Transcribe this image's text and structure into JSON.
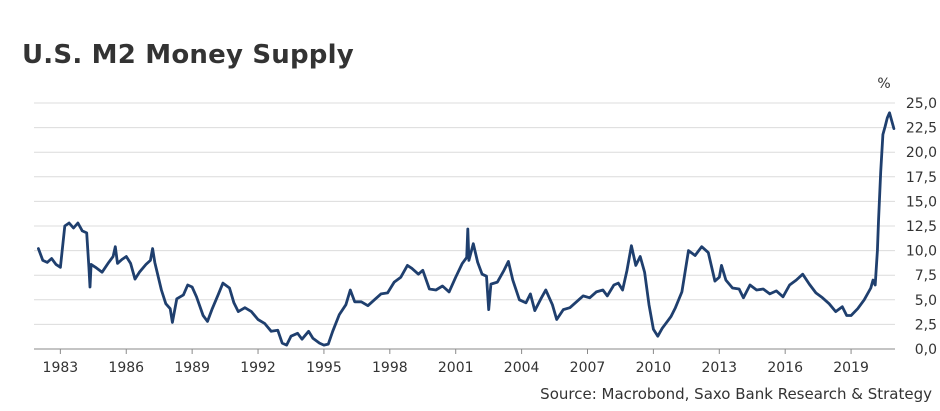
{
  "chart_data": {
    "type": "line",
    "title": "U.S. M2 Money Supply",
    "source": "Source: Macrobond, Saxo Bank Research & Strategy",
    "ylabel": "%",
    "xlabel": "",
    "xlim": [
      1981.8,
      2021.0
    ],
    "ylim": [
      0,
      25
    ],
    "grid": true,
    "legend": "none",
    "x_ticks": [
      1983,
      1986,
      1989,
      1992,
      1995,
      1998,
      2001,
      2004,
      2007,
      2010,
      2013,
      2016,
      2019
    ],
    "x_tick_labels": [
      "1983",
      "1986",
      "1989",
      "1992",
      "1995",
      "1998",
      "2001",
      "2004",
      "2007",
      "2010",
      "2013",
      "2016",
      "2019"
    ],
    "y_ticks": [
      0,
      2.5,
      5,
      7.5,
      10,
      12.5,
      15,
      17.5,
      20,
      22.5,
      25
    ],
    "y_tick_labels": [
      "0,0",
      "2,5",
      "5,0",
      "7,5",
      "10,0",
      "12,5",
      "15,0",
      "17,5",
      "20,0",
      "22,5",
      "25,0"
    ],
    "series": [
      {
        "color": "#1f3f6e",
        "points": [
          [
            1982.0,
            10.2
          ],
          [
            1982.2,
            9.0
          ],
          [
            1982.4,
            8.8
          ],
          [
            1982.6,
            9.2
          ],
          [
            1982.8,
            8.6
          ],
          [
            1983.0,
            8.3
          ],
          [
            1983.2,
            12.5
          ],
          [
            1983.4,
            12.8
          ],
          [
            1983.6,
            12.3
          ],
          [
            1983.8,
            12.8
          ],
          [
            1984.0,
            12.0
          ],
          [
            1984.2,
            11.8
          ],
          [
            1984.3,
            8.3
          ],
          [
            1984.35,
            6.3
          ],
          [
            1984.4,
            8.6
          ],
          [
            1984.6,
            8.3
          ],
          [
            1984.9,
            7.8
          ],
          [
            1985.2,
            8.8
          ],
          [
            1985.4,
            9.4
          ],
          [
            1985.5,
            10.4
          ],
          [
            1985.6,
            8.7
          ],
          [
            1985.8,
            9.1
          ],
          [
            1986.0,
            9.4
          ],
          [
            1986.2,
            8.7
          ],
          [
            1986.4,
            7.1
          ],
          [
            1986.6,
            7.8
          ],
          [
            1986.9,
            8.6
          ],
          [
            1987.1,
            9.0
          ],
          [
            1987.2,
            10.2
          ],
          [
            1987.3,
            8.8
          ],
          [
            1987.6,
            6.0
          ],
          [
            1987.8,
            4.6
          ],
          [
            1988.0,
            4.1
          ],
          [
            1988.1,
            2.7
          ],
          [
            1988.3,
            5.1
          ],
          [
            1988.6,
            5.5
          ],
          [
            1988.8,
            6.5
          ],
          [
            1989.0,
            6.3
          ],
          [
            1989.2,
            5.3
          ],
          [
            1989.5,
            3.4
          ],
          [
            1989.7,
            2.8
          ],
          [
            1989.9,
            4.0
          ],
          [
            1990.2,
            5.6
          ],
          [
            1990.4,
            6.7
          ],
          [
            1990.7,
            6.2
          ],
          [
            1990.9,
            4.7
          ],
          [
            1991.1,
            3.8
          ],
          [
            1991.4,
            4.2
          ],
          [
            1991.7,
            3.8
          ],
          [
            1992.0,
            3.0
          ],
          [
            1992.3,
            2.6
          ],
          [
            1992.6,
            1.8
          ],
          [
            1992.9,
            1.9
          ],
          [
            1993.1,
            0.6
          ],
          [
            1993.3,
            0.4
          ],
          [
            1993.5,
            1.3
          ],
          [
            1993.8,
            1.6
          ],
          [
            1994.0,
            1.0
          ],
          [
            1994.3,
            1.8
          ],
          [
            1994.5,
            1.1
          ],
          [
            1994.8,
            0.6
          ],
          [
            1995.0,
            0.4
          ],
          [
            1995.2,
            0.5
          ],
          [
            1995.4,
            1.8
          ],
          [
            1995.7,
            3.5
          ],
          [
            1996.0,
            4.5
          ],
          [
            1996.2,
            6.0
          ],
          [
            1996.4,
            4.8
          ],
          [
            1996.7,
            4.8
          ],
          [
            1997.0,
            4.4
          ],
          [
            1997.3,
            5.0
          ],
          [
            1997.6,
            5.6
          ],
          [
            1997.9,
            5.7
          ],
          [
            1998.2,
            6.8
          ],
          [
            1998.5,
            7.3
          ],
          [
            1998.8,
            8.5
          ],
          [
            1999.0,
            8.2
          ],
          [
            1999.3,
            7.6
          ],
          [
            1999.5,
            8.0
          ],
          [
            1999.8,
            6.1
          ],
          [
            2000.1,
            6.0
          ],
          [
            2000.4,
            6.4
          ],
          [
            2000.7,
            5.8
          ],
          [
            2001.0,
            7.3
          ],
          [
            2001.3,
            8.7
          ],
          [
            2001.5,
            9.3
          ],
          [
            2001.55,
            12.2
          ],
          [
            2001.6,
            9.0
          ],
          [
            2001.8,
            10.7
          ],
          [
            2002.0,
            8.8
          ],
          [
            2002.2,
            7.6
          ],
          [
            2002.4,
            7.4
          ],
          [
            2002.5,
            4.0
          ],
          [
            2002.6,
            6.6
          ],
          [
            2002.9,
            6.8
          ],
          [
            2003.2,
            8.0
          ],
          [
            2003.4,
            8.9
          ],
          [
            2003.6,
            7.0
          ],
          [
            2003.9,
            5.0
          ],
          [
            2004.2,
            4.7
          ],
          [
            2004.4,
            5.6
          ],
          [
            2004.6,
            3.9
          ],
          [
            2004.9,
            5.2
          ],
          [
            2005.1,
            6.0
          ],
          [
            2005.4,
            4.5
          ],
          [
            2005.6,
            3.0
          ],
          [
            2005.9,
            4.0
          ],
          [
            2006.2,
            4.2
          ],
          [
            2006.5,
            4.8
          ],
          [
            2006.8,
            5.4
          ],
          [
            2007.1,
            5.2
          ],
          [
            2007.4,
            5.8
          ],
          [
            2007.7,
            6.0
          ],
          [
            2007.9,
            5.4
          ],
          [
            2008.2,
            6.5
          ],
          [
            2008.4,
            6.7
          ],
          [
            2008.6,
            6.0
          ],
          [
            2008.8,
            8.0
          ],
          [
            2009.0,
            10.5
          ],
          [
            2009.2,
            8.5
          ],
          [
            2009.4,
            9.4
          ],
          [
            2009.6,
            7.8
          ],
          [
            2009.8,
            4.5
          ],
          [
            2010.0,
            2.0
          ],
          [
            2010.2,
            1.3
          ],
          [
            2010.4,
            2.1
          ],
          [
            2010.6,
            2.7
          ],
          [
            2010.8,
            3.3
          ],
          [
            2011.0,
            4.2
          ],
          [
            2011.3,
            5.8
          ],
          [
            2011.6,
            10.0
          ],
          [
            2011.9,
            9.5
          ],
          [
            2012.2,
            10.4
          ],
          [
            2012.5,
            9.8
          ],
          [
            2012.8,
            6.9
          ],
          [
            2013.0,
            7.3
          ],
          [
            2013.1,
            8.5
          ],
          [
            2013.3,
            7.0
          ],
          [
            2013.6,
            6.2
          ],
          [
            2013.9,
            6.1
          ],
          [
            2014.1,
            5.2
          ],
          [
            2014.4,
            6.5
          ],
          [
            2014.7,
            6.0
          ],
          [
            2015.0,
            6.1
          ],
          [
            2015.3,
            5.6
          ],
          [
            2015.6,
            5.9
          ],
          [
            2015.9,
            5.3
          ],
          [
            2016.2,
            6.5
          ],
          [
            2016.5,
            7.0
          ],
          [
            2016.8,
            7.6
          ],
          [
            2017.1,
            6.6
          ],
          [
            2017.4,
            5.7
          ],
          [
            2017.7,
            5.2
          ],
          [
            2018.0,
            4.6
          ],
          [
            2018.3,
            3.8
          ],
          [
            2018.6,
            4.3
          ],
          [
            2018.8,
            3.4
          ],
          [
            2019.0,
            3.4
          ],
          [
            2019.3,
            4.1
          ],
          [
            2019.6,
            5.0
          ],
          [
            2019.9,
            6.2
          ],
          [
            2020.0,
            7.0
          ],
          [
            2020.1,
            6.5
          ],
          [
            2020.2,
            10.0
          ],
          [
            2020.25,
            13.0
          ],
          [
            2020.35,
            18.0
          ],
          [
            2020.45,
            21.8
          ],
          [
            2020.55,
            22.6
          ],
          [
            2020.65,
            23.5
          ],
          [
            2020.75,
            24.0
          ],
          [
            2020.85,
            23.2
          ],
          [
            2020.95,
            22.4
          ]
        ]
      }
    ]
  }
}
